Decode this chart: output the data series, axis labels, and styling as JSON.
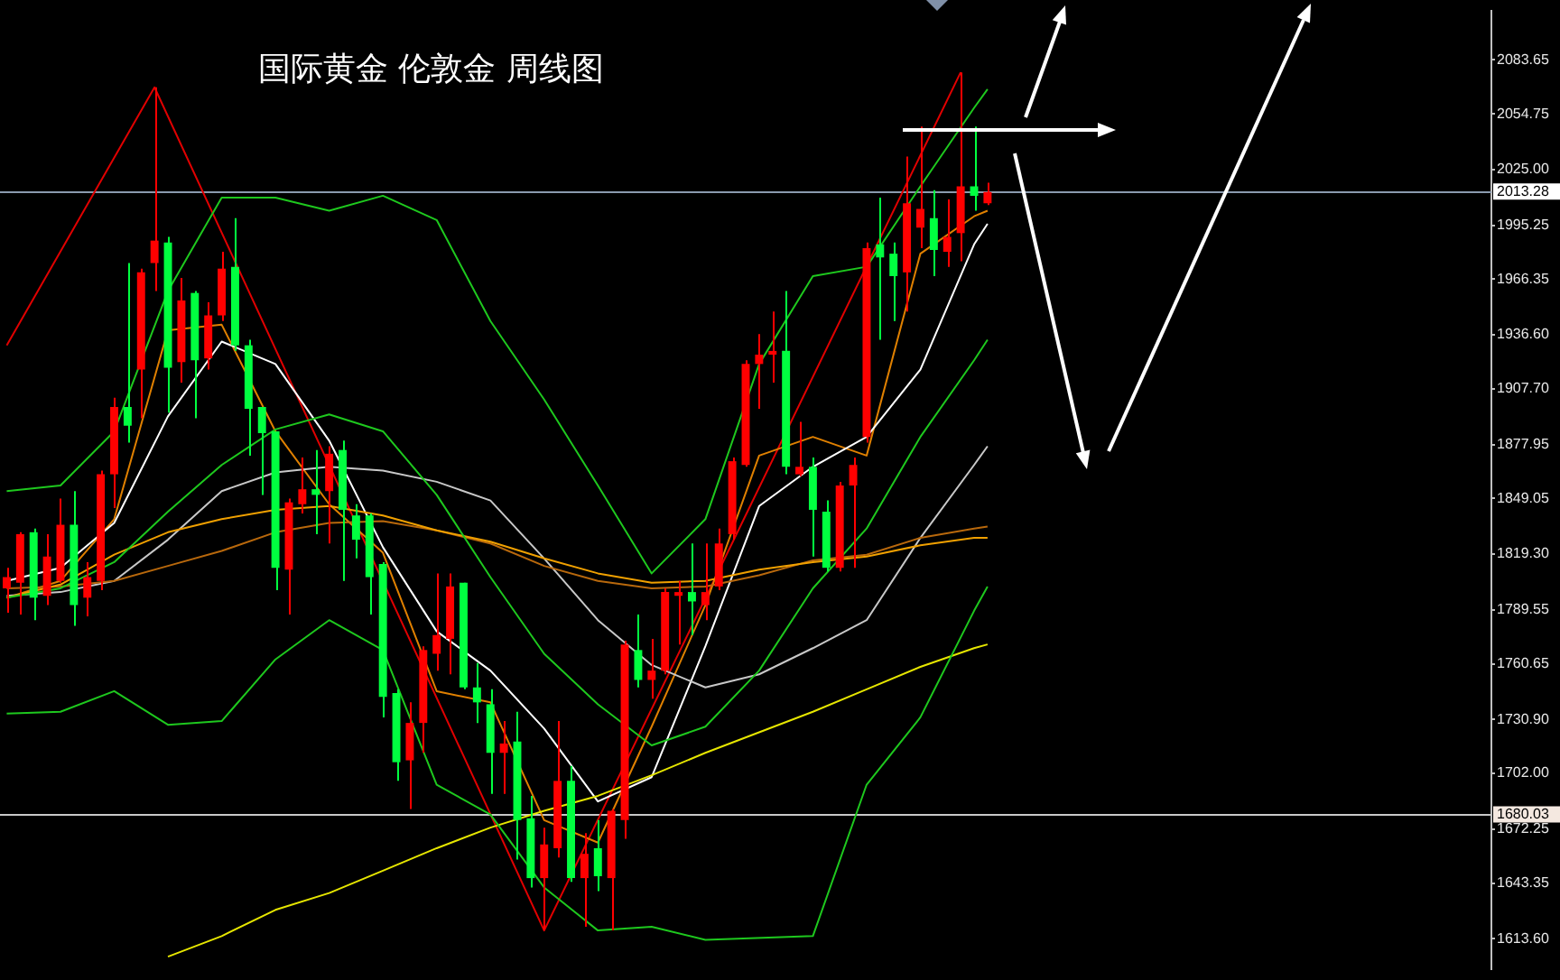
{
  "chart_data": {
    "type": "candlestick",
    "title": "国际黄金 伦敦金 周线图",
    "categories": [
      null,
      null,
      null,
      null,
      null,
      null,
      null,
      null,
      null,
      null,
      null,
      null,
      null,
      null,
      null,
      null,
      null,
      null,
      null,
      null,
      null,
      null,
      null,
      null,
      null,
      null,
      null,
      null,
      null,
      null,
      null,
      null,
      null,
      null,
      null,
      null,
      null,
      null,
      null,
      null,
      null,
      null,
      null,
      null,
      null,
      null,
      null,
      null,
      null,
      null,
      null,
      null,
      null,
      null,
      null,
      null,
      null,
      null,
      null,
      null,
      null,
      null,
      null,
      null,
      null,
      null,
      null,
      null,
      null,
      null,
      null,
      null,
      null,
      null,
      null,
      null,
      null,
      null,
      null,
      null,
      null,
      null,
      null,
      null,
      null,
      null,
      null,
      null,
      null,
      null,
      null,
      null,
      null,
      null,
      null,
      null,
      null,
      null,
      null,
      null,
      null,
      null,
      null,
      null,
      null,
      null,
      null,
      null,
      null,
      null,
      null
    ],
    "ohlc": [
      [
        1801,
        1812,
        1788,
        1807
      ],
      [
        1804,
        1831,
        1787,
        1830
      ],
      [
        1831,
        1833,
        1784,
        1796
      ],
      [
        1797,
        1830,
        1792,
        1818
      ],
      [
        1805,
        1849,
        1804,
        1835
      ],
      [
        1835,
        1853,
        1781,
        1792
      ],
      [
        1796,
        1815,
        1786,
        1807
      ],
      [
        1805,
        1864,
        1800,
        1862
      ],
      [
        1862,
        1903,
        1844,
        1898
      ],
      [
        1898,
        1975,
        1879,
        1888
      ],
      [
        1918,
        1972,
        1892,
        1970
      ],
      [
        1975,
        2069,
        1960,
        1987
      ],
      [
        1986,
        1989,
        1895,
        1919
      ],
      [
        1922,
        1967,
        1911,
        1955
      ],
      [
        1959,
        1960,
        1892,
        1923
      ],
      [
        1924,
        1954,
        1918,
        1947
      ],
      [
        1947,
        1981,
        1944,
        1972
      ],
      [
        1973,
        1999,
        1928,
        1931
      ],
      [
        1931,
        1934,
        1872,
        1897
      ],
      [
        1898,
        1898,
        1851,
        1884
      ],
      [
        1885,
        1885,
        1800,
        1812
      ],
      [
        1811,
        1849,
        1787,
        1847
      ],
      [
        1846,
        1871,
        1841,
        1854
      ],
      [
        1854,
        1875,
        1830,
        1851
      ],
      [
        1853,
        1877,
        1825,
        1873
      ],
      [
        1875,
        1880,
        1805,
        1843
      ],
      [
        1840,
        1846,
        1817,
        1827
      ],
      [
        1840,
        1841,
        1787,
        1807
      ],
      [
        1814,
        1815,
        1732,
        1743
      ],
      [
        1745,
        1747,
        1698,
        1708
      ],
      [
        1709,
        1740,
        1683,
        1729
      ],
      [
        1729,
        1770,
        1713,
        1768
      ],
      [
        1766,
        1809,
        1757,
        1776
      ],
      [
        1774,
        1809,
        1755,
        1802
      ],
      [
        1804,
        1804,
        1747,
        1748
      ],
      [
        1748,
        1761,
        1729,
        1740
      ],
      [
        1739,
        1747,
        1691,
        1713
      ],
      [
        1713,
        1730,
        1691,
        1718
      ],
      [
        1719,
        1735,
        1656,
        1677
      ],
      [
        1678,
        1690,
        1641,
        1646
      ],
      [
        1646,
        1673,
        1618,
        1664
      ],
      [
        1662,
        1730,
        1657,
        1698
      ],
      [
        1698,
        1706,
        1644,
        1646
      ],
      [
        1646,
        1670,
        1620,
        1659
      ],
      [
        1662,
        1677,
        1639,
        1647
      ],
      [
        1646,
        1683,
        1618,
        1682
      ],
      [
        1677,
        1773,
        1667,
        1771
      ],
      [
        1768,
        1787,
        1748,
        1752
      ],
      [
        1752,
        1774,
        1742,
        1757
      ],
      [
        1757,
        1801,
        1755,
        1799
      ],
      [
        1797,
        1805,
        1771,
        1799
      ],
      [
        1799,
        1825,
        1776,
        1794
      ],
      [
        1792,
        1825,
        1784,
        1799
      ],
      [
        1802,
        1833,
        1800,
        1825
      ],
      [
        1830,
        1871,
        1827,
        1869
      ],
      [
        1867,
        1923,
        1866,
        1921
      ],
      [
        1921,
        1937,
        1897,
        1926
      ],
      [
        1926,
        1949,
        1911,
        1928
      ],
      [
        1928,
        1960,
        1862,
        1866
      ],
      [
        1862,
        1890,
        1861,
        1866
      ],
      [
        1866,
        1871,
        1818,
        1843
      ],
      [
        1842,
        1848,
        1810,
        1812
      ],
      [
        1812,
        1858,
        1810,
        1856
      ],
      [
        1856,
        1871,
        1812,
        1867
      ],
      [
        1882,
        1986,
        1879,
        1983
      ],
      [
        1985,
        2010,
        1934,
        1978
      ],
      [
        1980,
        1986,
        1944,
        1968
      ],
      [
        1970,
        2032,
        1949,
        2007
      ],
      [
        1994,
        2048,
        1983,
        2004
      ],
      [
        1999,
        2014,
        1968,
        1982
      ],
      [
        1981,
        2009,
        1973,
        1989
      ],
      [
        1991,
        2077,
        1976,
        2016
      ],
      [
        2016,
        2048,
        2003,
        2011
      ],
      [
        2007,
        2018,
        2006,
        2013
      ],
      null,
      null,
      null,
      null,
      null,
      null,
      null,
      null,
      null,
      null,
      null,
      null,
      null,
      null,
      null,
      null,
      null,
      null,
      null,
      null,
      null,
      null,
      null,
      null,
      null,
      null,
      null,
      null,
      null,
      null,
      null,
      null,
      null,
      null,
      null,
      null,
      null
    ],
    "colors": [
      "#ff0000",
      "#ff0000",
      "#00ff40",
      "#ff0000",
      "#ff0000",
      "#00ff40",
      "#ff0000",
      "#ff0000",
      "#ff0000",
      "#00ff40",
      "#ff0000",
      "#ff0000",
      "#00ff40",
      "#ff0000",
      "#00ff40",
      "#ff0000",
      "#ff0000",
      "#00ff40",
      "#00ff40",
      "#00ff40",
      "#00ff40",
      "#ff0000",
      "#ff0000",
      "#00ff40",
      "#ff0000",
      "#00ff40",
      "#00ff40",
      "#00ff40",
      "#00ff40",
      "#00ff40",
      "#ff0000",
      "#ff0000",
      "#ff0000",
      "#ff0000",
      "#00ff40",
      "#00ff40",
      "#00ff40",
      "#ff0000",
      "#00ff40",
      "#00ff40",
      "#ff0000",
      "#ff0000",
      "#00ff40",
      "#ff0000",
      "#00ff40",
      "#ff0000",
      "#ff0000",
      "#00ff40",
      "#ff0000",
      "#ff0000",
      "#ff0000",
      "#00ff40",
      "#ff0000",
      "#ff0000",
      "#ff0000",
      "#ff0000",
      "#ff0000",
      "#ff0000",
      "#00ff40",
      "#ff0000",
      "#00ff40",
      "#00ff40",
      "#ff0000",
      "#ff0000",
      "#ff0000",
      "#00ff40",
      "#00ff40",
      "#ff0000",
      "#ff0000",
      "#00ff40",
      "#ff0000",
      "#ff0000",
      "#00ff40",
      "#ff0000",
      null,
      null,
      null,
      null,
      null,
      null,
      null,
      null,
      null,
      null,
      null,
      null,
      null,
      null,
      null,
      null,
      null,
      null,
      null,
      null,
      null,
      null,
      null,
      null,
      null,
      null,
      null,
      null,
      null,
      null,
      null,
      null,
      null,
      null,
      null,
      null,
      null
    ],
    "series": [
      {
        "type": "line",
        "color": "#1ec81e",
        "values": [
          1853,
          null,
          null,
          null,
          1856,
          null,
          null,
          null,
          1885,
          null,
          null,
          null,
          1960,
          null,
          null,
          null,
          2010,
          null,
          null,
          null,
          2010,
          null,
          null,
          null,
          2003,
          null,
          null,
          null,
          2011,
          null,
          null,
          null,
          1998,
          null,
          null,
          null,
          1944,
          null,
          null,
          null,
          1902,
          null,
          null,
          null,
          1856,
          null,
          null,
          null,
          1809,
          null,
          null,
          null,
          1838,
          null,
          null,
          null,
          1921,
          null,
          null,
          null,
          1968,
          null,
          null,
          null,
          1973,
          null,
          null,
          null,
          2016,
          null,
          null,
          null,
          2058,
          2068,
          null,
          null,
          null,
          null,
          null,
          null,
          null,
          null,
          null,
          null,
          null,
          null,
          null,
          null,
          null,
          null,
          null,
          null,
          null,
          null,
          null,
          null,
          null,
          null,
          null,
          null,
          null,
          null,
          null,
          null,
          null,
          null,
          null,
          null,
          null,
          null,
          null
        ]
      },
      {
        "type": "line",
        "color": "#1ec81e",
        "values": [
          1796,
          null,
          null,
          null,
          1801,
          null,
          null,
          null,
          1815,
          null,
          null,
          null,
          1842,
          null,
          null,
          null,
          1867,
          null,
          null,
          null,
          1886,
          null,
          null,
          null,
          1894,
          null,
          null,
          null,
          1885,
          null,
          null,
          null,
          1851,
          null,
          null,
          null,
          1807,
          null,
          null,
          null,
          1766,
          null,
          null,
          null,
          1739,
          null,
          null,
          null,
          1717,
          null,
          null,
          null,
          1727,
          null,
          null,
          null,
          1757,
          null,
          null,
          null,
          1801,
          null,
          null,
          null,
          1833,
          null,
          null,
          null,
          1882,
          null,
          null,
          null,
          1923,
          1934,
          null,
          null,
          null,
          null,
          null,
          null,
          null,
          null,
          null,
          null,
          null,
          null,
          null,
          null,
          null,
          null,
          null,
          null,
          null,
          null,
          null,
          null,
          null,
          null,
          null,
          null,
          null,
          null,
          null,
          null,
          null,
          null,
          null,
          null,
          null,
          null,
          null
        ]
      },
      {
        "type": "line",
        "color": "#1ec81e",
        "values": [
          1734,
          null,
          null,
          null,
          1735,
          null,
          null,
          null,
          1746,
          null,
          null,
          null,
          1728,
          null,
          null,
          null,
          1730,
          null,
          null,
          null,
          1763,
          null,
          null,
          null,
          1784,
          null,
          null,
          null,
          1768,
          null,
          null,
          null,
          1696,
          null,
          null,
          null,
          1680,
          null,
          null,
          null,
          1641,
          null,
          null,
          null,
          1618,
          null,
          null,
          null,
          1620,
          null,
          null,
          null,
          1613,
          null,
          null,
          null,
          null,
          null,
          null,
          null,
          1615,
          null,
          null,
          null,
          1696,
          null,
          null,
          null,
          1732,
          null,
          null,
          null,
          1789,
          1802,
          null,
          null,
          null,
          null,
          null,
          null,
          null,
          null,
          null,
          null,
          null,
          null,
          null,
          null,
          null,
          null,
          null,
          null,
          null,
          null,
          null,
          null,
          null,
          null,
          null,
          null,
          null,
          null,
          null,
          null,
          null,
          null,
          null,
          null,
          null,
          null,
          null
        ]
      },
      {
        "type": "line",
        "color": "#f0a000",
        "values": [
          1796,
          null,
          null,
          null,
          1803,
          null,
          null,
          null,
          1819,
          null,
          null,
          null,
          1831,
          null,
          null,
          null,
          1838,
          null,
          null,
          null,
          1843,
          null,
          null,
          null,
          1845,
          null,
          null,
          null,
          1840,
          null,
          null,
          null,
          1832,
          null,
          null,
          null,
          1826,
          null,
          null,
          null,
          1817,
          null,
          null,
          null,
          1809,
          null,
          null,
          null,
          1804,
          null,
          null,
          null,
          1805,
          null,
          null,
          null,
          1811,
          null,
          null,
          null,
          1815,
          null,
          null,
          null,
          1818,
          null,
          null,
          null,
          1824,
          null,
          null,
          null,
          1828,
          1828,
          null,
          null,
          null,
          null,
          null,
          null,
          null,
          null,
          null,
          null,
          null,
          null,
          null,
          null,
          null,
          null,
          null,
          null,
          null,
          null,
          null,
          null,
          null,
          null,
          null,
          null,
          null,
          null,
          null,
          null,
          null,
          null,
          null,
          null,
          null,
          null,
          null
        ]
      },
      {
        "type": "line",
        "color": "#b8680c",
        "values": [
          1801,
          null,
          null,
          null,
          1802,
          null,
          null,
          null,
          1805,
          null,
          null,
          null,
          1813,
          null,
          null,
          null,
          1821,
          null,
          null,
          null,
          1831,
          null,
          null,
          null,
          1836,
          null,
          null,
          null,
          1837,
          null,
          null,
          null,
          1832,
          null,
          null,
          null,
          1825,
          null,
          null,
          null,
          1813,
          null,
          null,
          null,
          1805,
          null,
          null,
          null,
          1801,
          null,
          null,
          null,
          1802,
          null,
          null,
          null,
          1808,
          null,
          null,
          null,
          1816,
          null,
          null,
          null,
          1819,
          null,
          null,
          null,
          1828,
          null,
          null,
          null,
          1833,
          1834,
          null,
          null,
          null,
          null,
          null,
          null,
          null,
          null,
          null,
          null,
          null,
          null,
          null,
          null,
          null,
          null,
          null,
          null,
          null,
          null,
          null,
          null,
          null,
          null,
          null,
          null,
          null,
          null,
          null,
          null,
          null,
          null,
          null,
          null,
          null,
          null,
          null
        ]
      },
      {
        "type": "line",
        "color": "#e6e600",
        "values": [
          null,
          null,
          null,
          null,
          null,
          null,
          null,
          null,
          null,
          null,
          null,
          null,
          1604,
          null,
          null,
          null,
          1615,
          null,
          null,
          null,
          1629,
          null,
          null,
          null,
          1638,
          null,
          null,
          null,
          1650,
          null,
          null,
          null,
          1662,
          null,
          null,
          null,
          1673,
          null,
          null,
          null,
          1682,
          null,
          null,
          null,
          1690,
          null,
          null,
          null,
          1701,
          null,
          null,
          null,
          1713,
          null,
          null,
          null,
          1724,
          null,
          null,
          null,
          1735,
          null,
          null,
          null,
          1747,
          null,
          null,
          null,
          1759,
          null,
          null,
          null,
          1769,
          1771,
          null,
          null,
          null,
          null,
          null,
          null,
          null,
          null,
          null,
          null,
          null,
          null,
          null,
          null,
          null,
          null,
          null,
          null,
          null,
          null,
          null,
          null,
          null,
          null,
          null,
          null,
          null,
          null,
          null,
          null,
          null,
          null,
          null,
          null,
          null,
          null,
          null
        ]
      },
      {
        "type": "line",
        "color": "#c8c8c8",
        "values": [
          1797,
          null,
          null,
          null,
          1799,
          null,
          null,
          null,
          1805,
          null,
          null,
          null,
          1827,
          null,
          null,
          null,
          1853,
          null,
          null,
          null,
          1863,
          null,
          null,
          null,
          1866,
          null,
          null,
          null,
          1864,
          null,
          null,
          null,
          1858,
          null,
          null,
          null,
          1848,
          null,
          null,
          null,
          1817,
          null,
          null,
          null,
          1784,
          null,
          null,
          null,
          1760,
          null,
          null,
          null,
          1748,
          null,
          null,
          null,
          1755,
          null,
          null,
          null,
          1769,
          null,
          null,
          null,
          1784,
          null,
          null,
          null,
          1828,
          null,
          null,
          null,
          1867,
          1877,
          null,
          null,
          null,
          null,
          null,
          null,
          null,
          null,
          null,
          null,
          null,
          null,
          null,
          null,
          null,
          null,
          null,
          null,
          null,
          null,
          null,
          null,
          null,
          null,
          null,
          null,
          null,
          null,
          null,
          null,
          null,
          null,
          null,
          null,
          null,
          null,
          null
        ]
      },
      {
        "type": "line",
        "color": "#ffffff",
        "values": [
          1805,
          null,
          null,
          null,
          1812,
          null,
          null,
          null,
          1836,
          null,
          null,
          null,
          1893,
          null,
          null,
          null,
          1933,
          null,
          null,
          null,
          1921,
          null,
          null,
          null,
          1880,
          null,
          null,
          null,
          1823,
          null,
          null,
          null,
          1778,
          null,
          null,
          null,
          1757,
          null,
          null,
          null,
          1726,
          null,
          null,
          null,
          1687,
          null,
          null,
          null,
          1700,
          null,
          null,
          null,
          1770,
          null,
          null,
          null,
          1845,
          null,
          null,
          null,
          1866,
          null,
          null,
          null,
          1882,
          null,
          null,
          null,
          1918,
          null,
          null,
          null,
          1985,
          1996,
          null,
          null,
          null,
          null,
          null,
          null,
          null,
          null,
          null,
          null,
          null,
          null,
          null,
          null,
          null,
          null,
          null,
          null,
          null,
          null,
          null,
          null,
          null,
          null,
          null,
          null,
          null,
          null,
          null,
          null,
          null,
          null,
          null,
          null,
          null,
          null,
          null
        ]
      },
      {
        "type": "line",
        "color": "#e08000",
        "values": [
          1796,
          null,
          null,
          null,
          1805,
          null,
          null,
          null,
          1838,
          null,
          null,
          null,
          1939,
          null,
          null,
          null,
          1942,
          null,
          null,
          null,
          1885,
          null,
          null,
          null,
          1846,
          null,
          null,
          null,
          1820,
          null,
          null,
          null,
          1746,
          null,
          null,
          null,
          1740,
          null,
          null,
          null,
          1677,
          null,
          null,
          null,
          1665,
          null,
          null,
          null,
          1727,
          null,
          null,
          null,
          1792,
          null,
          null,
          null,
          1872,
          null,
          null,
          null,
          1882,
          null,
          null,
          null,
          1872,
          null,
          null,
          null,
          1980,
          null,
          null,
          null,
          2000,
          2003,
          null,
          null,
          null,
          null,
          null,
          null,
          null,
          null,
          null,
          null,
          null,
          null,
          null,
          null,
          null,
          null,
          null,
          null,
          null,
          null,
          null,
          null,
          null,
          null,
          null,
          null,
          null,
          null,
          null,
          null,
          null,
          null,
          null,
          null,
          null,
          null,
          null
        ]
      },
      {
        "type": "line",
        "color": "#e00000",
        "values": [
          1931,
          null,
          null,
          null,
          null,
          null,
          null,
          null,
          null,
          null,
          null,
          2069,
          null,
          null,
          null,
          null,
          null,
          null,
          null,
          null,
          null,
          null,
          null,
          null,
          null,
          null,
          null,
          null,
          null,
          null,
          null,
          null,
          null,
          null,
          null,
          null,
          null,
          null,
          null,
          null,
          1618,
          null,
          null,
          null,
          null,
          null,
          null,
          null,
          null,
          null,
          null,
          null,
          null,
          null,
          null,
          null,
          null,
          null,
          null,
          null,
          null,
          null,
          null,
          null,
          null,
          null,
          null,
          null,
          null,
          null,
          null,
          2077,
          null,
          null,
          null,
          null,
          null,
          null,
          null,
          null,
          null,
          null,
          null,
          null,
          null,
          null,
          null,
          null,
          null,
          null,
          null,
          null,
          null,
          null,
          null,
          null,
          null,
          null,
          null,
          null,
          null,
          null,
          null,
          null,
          null,
          null,
          null,
          null,
          null,
          null,
          null
        ]
      }
    ],
    "ylim": [
      1597.1,
      2110.1
    ],
    "yticks": [
      2083.65,
      2054.75,
      {
        "value": 2025,
        "label": "2025.00"
      },
      1995.25,
      1966.35,
      {
        "value": 1936.6,
        "label": "1936.60"
      },
      {
        "value": 1907.7,
        "label": "1907.70"
      },
      1877.95,
      1849.05,
      {
        "value": 1819.3,
        "label": "1819.30"
      },
      1789.55,
      1760.65,
      {
        "value": 1730.9,
        "label": "1730.90"
      },
      {
        "value": 1702,
        "label": "1702.00"
      },
      1672.25,
      1643.35,
      {
        "value": 1613.6,
        "label": "1613.60"
      }
    ],
    "ref_lines": [
      {
        "axis": "y",
        "value": 2013.28,
        "label": "2013.28",
        "color": "#8a9aae"
      },
      {
        "axis": "y",
        "value": 1680.03,
        "label": "1680.03",
        "color": "#c8c8c8"
      }
    ],
    "tick_labels": "y",
    "grid": false
  }
}
